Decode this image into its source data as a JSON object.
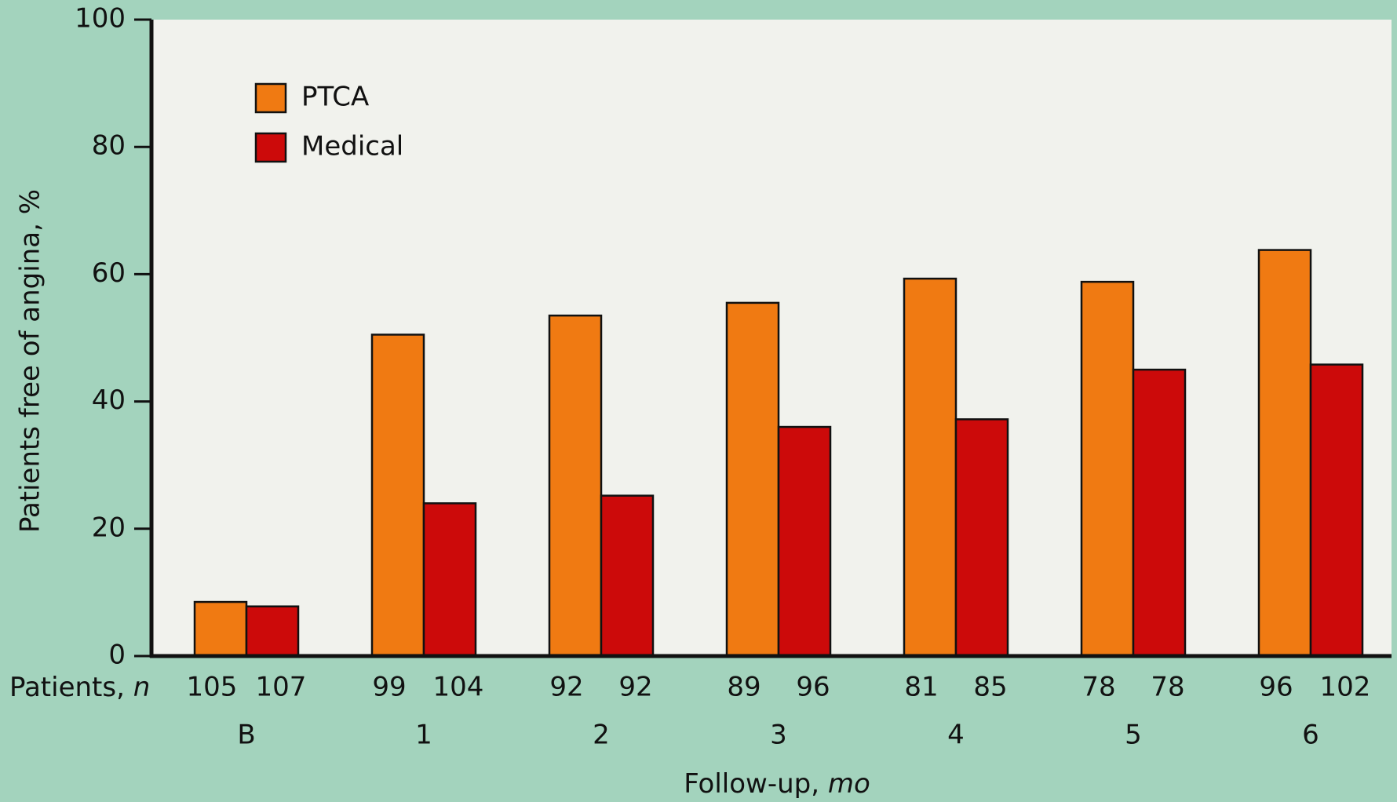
{
  "chart_data": {
    "type": "bar",
    "ylabel": "Patients free of angina, %",
    "xlabel": "Follow-up,",
    "xlabel_unit": "mo",
    "patients_label": "Patients,",
    "patients_label_unit": "n",
    "categories": [
      "B",
      "1",
      "2",
      "3",
      "4",
      "5",
      "6"
    ],
    "series": [
      {
        "name": "PTCA",
        "color": "#f07a12",
        "values": [
          8.5,
          50.5,
          53.5,
          55.5,
          59.3,
          58.8,
          63.8
        ],
        "n": [
          105,
          99,
          92,
          89,
          81,
          78,
          96
        ]
      },
      {
        "name": "Medical",
        "color": "#cc0a0a",
        "values": [
          7.8,
          24,
          25.2,
          36,
          37.2,
          45,
          45.8
        ],
        "n": [
          107,
          104,
          92,
          96,
          85,
          78,
          102
        ]
      }
    ],
    "ylim": [
      0,
      100
    ],
    "yticks": [
      0,
      20,
      40,
      60,
      80,
      100
    ]
  }
}
